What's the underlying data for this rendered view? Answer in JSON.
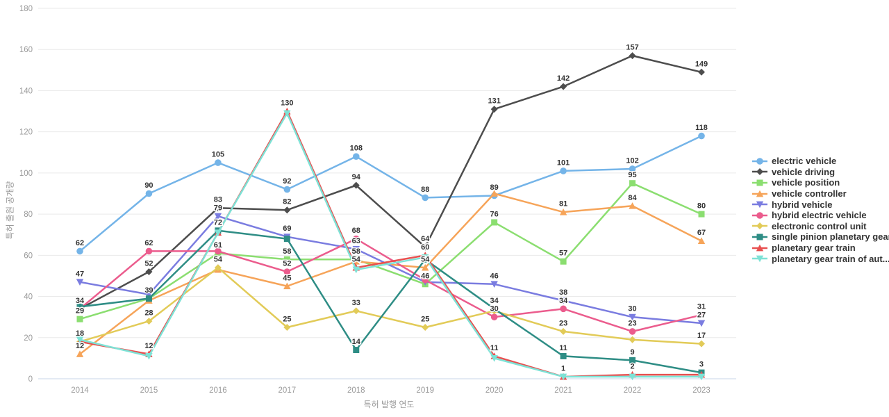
{
  "chart_data": {
    "type": "line",
    "title": "",
    "xlabel": "특허 발행 연도",
    "ylabel": "특허 출원 공개량",
    "x": [
      "2014",
      "2015",
      "2016",
      "2017",
      "2018",
      "2019",
      "2020",
      "2021",
      "2022",
      "2023"
    ],
    "ylim": [
      0,
      180
    ],
    "yticks": [
      0,
      20,
      40,
      60,
      80,
      100,
      120,
      140,
      160,
      180
    ],
    "grid": true,
    "legend_position": "right",
    "colors": {
      "grid_line": "#eaeaea",
      "zero_line": "#c7d5e8",
      "tick_text": "#9a9a9a",
      "data_label": "#333333"
    },
    "series": [
      {
        "name": "electric vehicle",
        "color": "#74b4e8",
        "marker": "circle",
        "values": [
          62,
          90,
          105,
          92,
          108,
          88,
          89,
          101,
          102,
          118
        ],
        "labels": [
          62,
          90,
          105,
          92,
          108,
          88,
          89,
          101,
          102,
          118
        ]
      },
      {
        "name": "vehicle driving",
        "color": "#4d4d4d",
        "marker": "diamond",
        "values": [
          34,
          52,
          83,
          82,
          94,
          64,
          131,
          142,
          157,
          149
        ],
        "labels": [
          34,
          52,
          83,
          82,
          94,
          64,
          131,
          142,
          157,
          149
        ]
      },
      {
        "name": "vehicle position",
        "color": "#8bde70",
        "marker": "square",
        "values": [
          29,
          39,
          61,
          58,
          58,
          46,
          76,
          57,
          95,
          80
        ],
        "labels": [
          29,
          39,
          61,
          58,
          58,
          46,
          76,
          57,
          95,
          80
        ]
      },
      {
        "name": "vehicle controller",
        "color": "#f6a459",
        "marker": "triangle",
        "values": [
          12,
          38,
          53,
          45,
          57,
          54,
          90,
          81,
          84,
          67
        ],
        "labels": [
          12,
          null,
          null,
          45,
          null,
          54,
          null,
          81,
          84,
          67
        ]
      },
      {
        "name": "hybrid vehicle",
        "color": "#7a7ce0",
        "marker": "triangle-down",
        "values": [
          47,
          41,
          79,
          69,
          63,
          47,
          46,
          38,
          30,
          27
        ],
        "labels": [
          47,
          null,
          79,
          69,
          63,
          null,
          46,
          38,
          30,
          27
        ]
      },
      {
        "name": "hybrid electric vehicle",
        "color": "#eb5c8d",
        "marker": "circle",
        "values": [
          34,
          62,
          62,
          52,
          68,
          48,
          30,
          34,
          23,
          31
        ],
        "labels": [
          null,
          62,
          null,
          52,
          68,
          null,
          30,
          34,
          23,
          31
        ]
      },
      {
        "name": "electronic control unit",
        "color": "#e2cb58",
        "marker": "diamond",
        "values": [
          18,
          28,
          54,
          25,
          33,
          25,
          33,
          23,
          19,
          17
        ],
        "labels": [
          18,
          28,
          54,
          25,
          33,
          25,
          null,
          23,
          null,
          17
        ]
      },
      {
        "name": "single pinion planetary gear",
        "color": "#2e8d85",
        "marker": "square",
        "values": [
          35,
          39,
          72,
          68,
          14,
          58,
          34,
          11,
          9,
          3
        ],
        "labels": [
          null,
          null,
          72,
          null,
          14,
          null,
          34,
          11,
          9,
          3
        ]
      },
      {
        "name": "planetary gear train",
        "color": "#e85050",
        "marker": "triangle",
        "values": [
          18,
          12,
          71,
          130,
          54,
          60,
          11,
          1,
          2,
          2
        ],
        "labels": [
          null,
          12,
          null,
          130,
          54,
          60,
          11,
          1,
          2,
          null
        ]
      },
      {
        "name": "planetary gear train of aut...",
        "color": "#7ee2d6",
        "marker": "triangle-down",
        "values": [
          19,
          11,
          71,
          129,
          53,
          59,
          10,
          1,
          1,
          1
        ],
        "labels": [
          null,
          null,
          null,
          null,
          null,
          null,
          null,
          null,
          null,
          null
        ]
      }
    ]
  }
}
